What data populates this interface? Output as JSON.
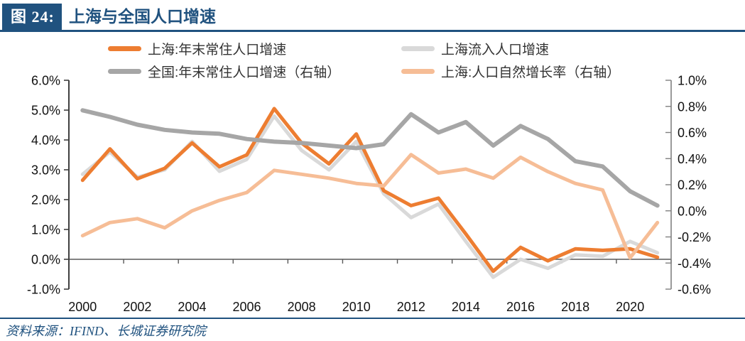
{
  "header": {
    "figure_label": "图 24:",
    "title": "上海与全国人口增速"
  },
  "footer": {
    "source": "资料来源：IFIND、长城证券研究院"
  },
  "colors": {
    "navy": "#20527F",
    "orange": "#ED7D31",
    "light_gray": "#D9D9D9",
    "gray": "#A6A6A6",
    "light_orange": "#F6BD96",
    "axis_dark": "#3F3F3F",
    "axis_gray": "#808080",
    "zero_line": "#595959"
  },
  "chart_data": {
    "type": "line",
    "title": "上海与全国人口增速",
    "x": [
      2000,
      2001,
      2002,
      2003,
      2004,
      2005,
      2006,
      2007,
      2008,
      2009,
      2010,
      2011,
      2012,
      2013,
      2014,
      2015,
      2016,
      2017,
      2018,
      2019,
      2020,
      2021
    ],
    "x_tick_years": [
      2000,
      2002,
      2004,
      2006,
      2008,
      2010,
      2012,
      2014,
      2016,
      2018,
      2020
    ],
    "x_tick_labels": [
      "2000",
      "2002",
      "2004",
      "2006",
      "2008",
      "2010",
      "2012",
      "2014",
      "2016",
      "2018",
      "2020"
    ],
    "left_axis": {
      "min": -1.0,
      "max": 6.0,
      "tick_values": [
        6,
        5,
        4,
        3,
        2,
        1,
        0,
        -1
      ],
      "tick_labels": [
        "6.0%",
        "5.0%",
        "4.0%",
        "3.0%",
        "2.0%",
        "1.0%",
        "0.0%",
        "-1.0%"
      ]
    },
    "right_axis": {
      "min": -0.6,
      "max": 1.0,
      "tick_values": [
        1.0,
        0.8,
        0.6,
        0.4,
        0.2,
        0.0,
        -0.2,
        -0.4,
        -0.6
      ],
      "tick_labels": [
        "1.0%",
        "0.8%",
        "0.6%",
        "0.4%",
        "0.2%",
        "0.0%",
        "-0.2%",
        "-0.4%",
        "-0.6%"
      ]
    },
    "legend_position": "top",
    "grid": false,
    "series": [
      {
        "key": "shanghai-resident",
        "name": "上海:年末常住人口增速",
        "axis": "left",
        "color": "#ED7D31",
        "width": 5,
        "values": [
          2.65,
          3.7,
          2.7,
          3.05,
          3.9,
          3.1,
          3.5,
          5.05,
          3.9,
          3.2,
          4.2,
          2.3,
          1.8,
          2.05,
          0.85,
          -0.4,
          0.4,
          -0.05,
          0.35,
          0.3,
          0.35,
          0.07
        ]
      },
      {
        "key": "shanghai-inflow",
        "name": "上海流入人口增速",
        "axis": "left",
        "color": "#D9D9D9",
        "width": 5,
        "values": [
          2.85,
          3.6,
          2.75,
          3.0,
          3.95,
          2.95,
          3.35,
          4.8,
          3.65,
          3.0,
          3.95,
          2.2,
          1.4,
          1.85,
          0.6,
          -0.6,
          0.0,
          -0.3,
          0.15,
          0.1,
          0.6,
          0.22
        ]
      },
      {
        "key": "national-resident",
        "name": "全国:年末常住人口增速（右轴）",
        "axis": "right",
        "color": "#A6A6A6",
        "width": 6,
        "values": [
          0.77,
          0.72,
          0.66,
          0.62,
          0.6,
          0.59,
          0.55,
          0.53,
          0.52,
          0.5,
          0.48,
          0.51,
          0.74,
          0.6,
          0.68,
          0.5,
          0.65,
          0.55,
          0.38,
          0.34,
          0.15,
          0.04
        ]
      },
      {
        "key": "shanghai-natural-growth",
        "name": "上海:人口自然增长率（右轴）",
        "axis": "right",
        "color": "#F6BD96",
        "width": 5,
        "values": [
          -0.19,
          -0.09,
          -0.06,
          -0.13,
          0.0,
          0.08,
          0.14,
          0.31,
          0.28,
          0.25,
          0.21,
          0.19,
          0.43,
          0.29,
          0.32,
          0.25,
          0.41,
          0.3,
          0.21,
          0.16,
          -0.36,
          -0.09
        ]
      }
    ],
    "legend_order": [
      "shanghai-resident",
      "shanghai-inflow",
      "national-resident",
      "shanghai-natural-growth"
    ]
  }
}
